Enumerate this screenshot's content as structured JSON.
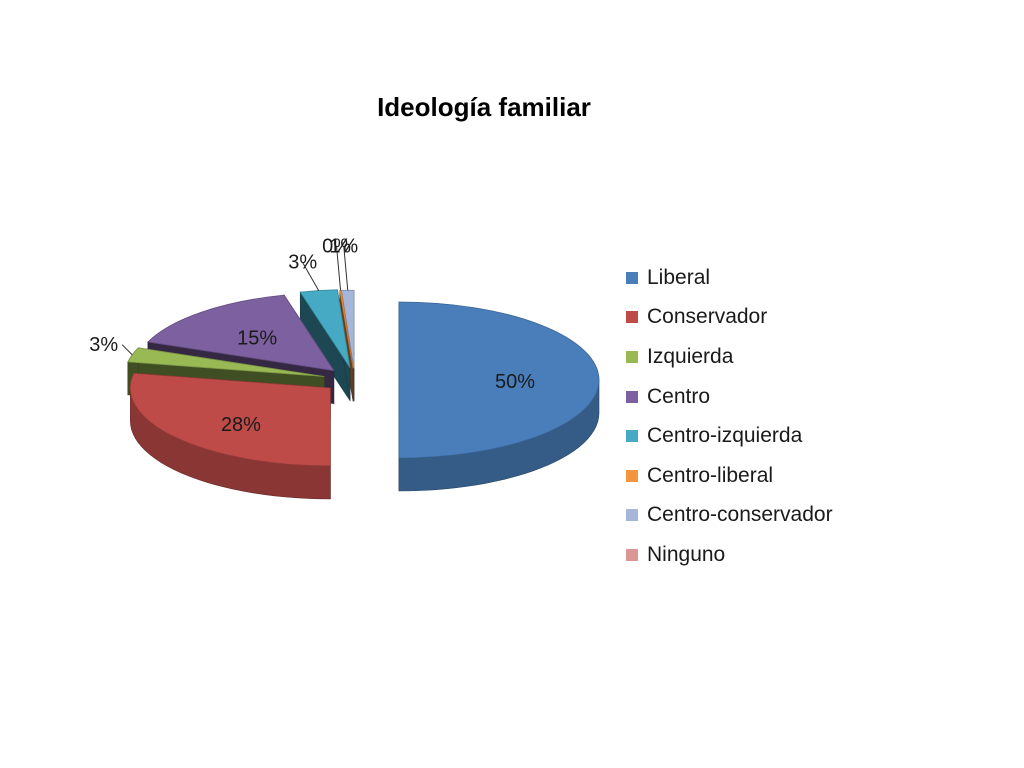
{
  "chart_data": {
    "type": "pie",
    "title": "Ideología familiar",
    "categories": [
      "Liberal",
      "Conservador",
      "Izquierda",
      "Centro",
      "Centro-izquierda",
      "Centro-liberal",
      "Centro-conservador",
      "Ninguno"
    ],
    "values": [
      50,
      28,
      3,
      15,
      3,
      0,
      1,
      0
    ],
    "data_labels": [
      "50%",
      "28%",
      "3%",
      "15%",
      "3%",
      "0%",
      "1%",
      ""
    ],
    "colors": [
      "#4a7ebb",
      "#be4b48",
      "#98b954",
      "#7d60a0",
      "#46aac5",
      "#f59540",
      "#a5b6da",
      "#d99694"
    ],
    "legend_position": "right",
    "style": "3d-exploded"
  }
}
